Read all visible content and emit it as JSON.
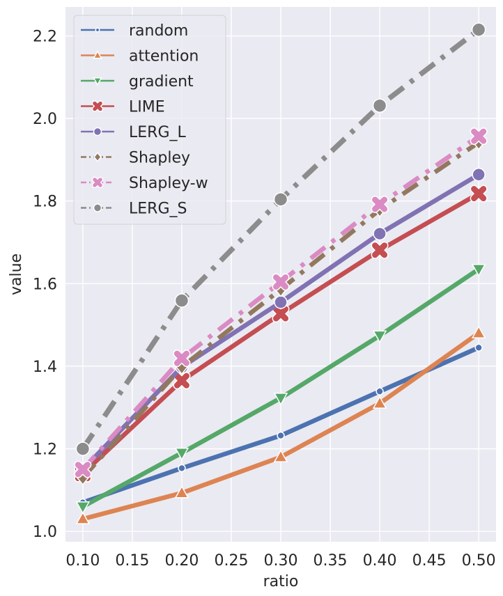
{
  "chart_data": {
    "type": "line",
    "title": "",
    "xlabel": "ratio",
    "ylabel": "value",
    "x": [
      0.1,
      0.2,
      0.3,
      0.4,
      0.5
    ],
    "xlim": [
      0.0825,
      0.5175
    ],
    "ylim": [
      0.975,
      2.27
    ],
    "xticks": [
      "0.10",
      "0.15",
      "0.20",
      "0.25",
      "0.30",
      "0.35",
      "0.40",
      "0.45",
      "0.50"
    ],
    "xtick_values": [
      0.1,
      0.15,
      0.2,
      0.25,
      0.3,
      0.35,
      0.4,
      0.45,
      0.5
    ],
    "yticks": [
      "1.0",
      "1.2",
      "1.4",
      "1.6",
      "1.8",
      "2.0",
      "2.2"
    ],
    "ytick_values": [
      1.0,
      1.2,
      1.4,
      1.6,
      1.8,
      2.0,
      2.2
    ],
    "grid": true,
    "legend_position": "top-left",
    "series": [
      {
        "name": "random",
        "color": "#4c72b0",
        "marker": "circle-small",
        "dashed": false,
        "values": [
          1.07,
          1.153,
          1.232,
          1.339,
          1.445
        ]
      },
      {
        "name": "attention",
        "color": "#dd8452",
        "marker": "triangle-up",
        "dashed": false,
        "values": [
          1.03,
          1.093,
          1.18,
          1.31,
          1.48
        ]
      },
      {
        "name": "gradient",
        "color": "#55a868",
        "marker": "triangle-down",
        "dashed": false,
        "values": [
          1.06,
          1.19,
          1.323,
          1.474,
          1.635
        ]
      },
      {
        "name": "LIME",
        "color": "#c44e52",
        "marker": "x",
        "dashed": false,
        "values": [
          1.14,
          1.365,
          1.527,
          1.681,
          1.818
        ]
      },
      {
        "name": "LERG_L",
        "color": "#8172b3",
        "marker": "circle",
        "dashed": false,
        "values": [
          1.15,
          1.398,
          1.555,
          1.721,
          1.864
        ]
      },
      {
        "name": "Shapley",
        "color": "#937860",
        "marker": "diamond",
        "dashed": true,
        "values": [
          1.13,
          1.398,
          1.586,
          1.779,
          1.942
        ]
      },
      {
        "name": "Shapley-w",
        "color": "#da8bc3",
        "marker": "x",
        "dashed": true,
        "values": [
          1.15,
          1.419,
          1.604,
          1.792,
          1.957
        ]
      },
      {
        "name": "LERG_S",
        "color": "#8c8c8c",
        "marker": "circle",
        "dashed": true,
        "values": [
          1.2,
          1.559,
          1.804,
          2.031,
          2.215
        ]
      }
    ]
  }
}
